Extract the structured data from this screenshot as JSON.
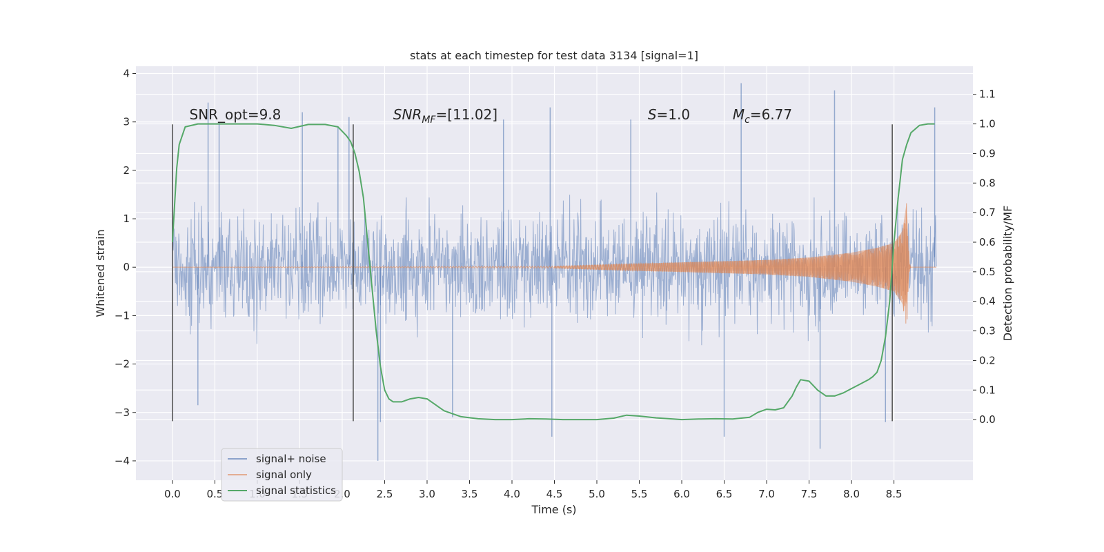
{
  "chart_data": {
    "type": "line",
    "title": "stats at each timestep for test data 3134 [signal=1]",
    "xlabel": "Time (s)",
    "ylabel": "Whitened strain",
    "y2label": "Detection probability/MF",
    "xlim": [
      -0.43,
      9.43
    ],
    "ylim": [
      -4.4,
      4.15
    ],
    "y2lim": [
      -0.205,
      1.195
    ],
    "xticks": [
      0.0,
      0.5,
      1.0,
      1.5,
      2.0,
      2.5,
      3.0,
      3.5,
      4.0,
      4.5,
      5.0,
      5.5,
      6.0,
      6.5,
      7.0,
      7.5,
      8.0,
      8.5
    ],
    "xtick_labels": [
      "0.0",
      "0.5",
      "1.0",
      "1.5",
      "2.0",
      "2.5",
      "3.0",
      "3.5",
      "4.0",
      "4.5",
      "5.0",
      "5.5",
      "6.0",
      "6.5",
      "7.0",
      "7.5",
      "8.0",
      "8.5"
    ],
    "yticks": [
      4,
      3,
      2,
      1,
      0,
      -1,
      -2,
      -3,
      -4
    ],
    "ytick_labels": [
      "4",
      "3",
      "2",
      "1",
      "0",
      "−1",
      "−2",
      "−3",
      "−4"
    ],
    "y2ticks": [
      1.1,
      1.0,
      0.9,
      0.8,
      0.7,
      0.6,
      0.5,
      0.4,
      0.3,
      0.2,
      0.1,
      0.0
    ],
    "y2tick_labels": [
      "1.1",
      "1.0",
      "0.9",
      "0.8",
      "0.7",
      "0.6",
      "0.5",
      "0.4",
      "0.3",
      "0.2",
      "0.1",
      "0.0"
    ],
    "grid": true,
    "legend_position": "lower-left",
    "series": [
      {
        "name": "signal+ noise",
        "color": "#4c72b0",
        "axis": "left",
        "x_range": [
          0.0,
          9.0
        ],
        "typical_envelope": [
          -1.3,
          1.3
        ],
        "peaks": [
          {
            "x": 0.42,
            "y": 3.4
          },
          {
            "x": 0.55,
            "y": 3.0
          },
          {
            "x": 1.53,
            "y": 3.2
          },
          {
            "x": 1.95,
            "y": 2.9
          },
          {
            "x": 2.08,
            "y": 3.1
          },
          {
            "x": 3.9,
            "y": 3.05
          },
          {
            "x": 4.45,
            "y": 3.3
          },
          {
            "x": 5.4,
            "y": 3.05
          },
          {
            "x": 6.7,
            "y": 3.8
          },
          {
            "x": 7.8,
            "y": 3.65
          },
          {
            "x": 8.98,
            "y": 3.3
          },
          {
            "x": 0.3,
            "y": -2.85
          },
          {
            "x": 2.45,
            "y": -3.2
          },
          {
            "x": 2.42,
            "y": -4.0
          },
          {
            "x": 3.3,
            "y": -3.1
          },
          {
            "x": 4.47,
            "y": -3.5
          },
          {
            "x": 6.5,
            "y": -3.5
          },
          {
            "x": 7.63,
            "y": -3.75
          },
          {
            "x": 8.4,
            "y": -3.2
          }
        ]
      },
      {
        "name": "signal only",
        "color": "#dd8452",
        "axis": "left",
        "x_range": [
          0.0,
          9.0
        ],
        "envelope": [
          [
            0.0,
            0.0
          ],
          [
            4.5,
            0.02
          ],
          [
            5.0,
            0.05
          ],
          [
            6.0,
            0.1
          ],
          [
            7.0,
            0.15
          ],
          [
            7.5,
            0.2
          ],
          [
            8.0,
            0.3
          ],
          [
            8.3,
            0.4
          ],
          [
            8.5,
            0.5
          ],
          [
            8.6,
            0.75
          ],
          [
            8.65,
            1.35
          ],
          [
            8.68,
            0.1
          ],
          [
            8.7,
            0.0
          ],
          [
            9.0,
            0.0
          ]
        ]
      },
      {
        "name": "signal statistics",
        "color": "#55a868",
        "axis": "right",
        "x": [
          0.0,
          0.05,
          0.08,
          0.15,
          0.3,
          0.5,
          0.8,
          1.0,
          1.2,
          1.4,
          1.6,
          1.8,
          1.95,
          2.05,
          2.1,
          2.15,
          2.2,
          2.25,
          2.3,
          2.35,
          2.4,
          2.45,
          2.5,
          2.55,
          2.6,
          2.7,
          2.8,
          2.9,
          3.0,
          3.1,
          3.2,
          3.4,
          3.6,
          3.8,
          4.0,
          4.2,
          4.4,
          4.6,
          4.8,
          5.0,
          5.2,
          5.35,
          5.5,
          5.7,
          5.9,
          6.0,
          6.2,
          6.4,
          6.6,
          6.8,
          6.9,
          7.0,
          7.1,
          7.2,
          7.3,
          7.35,
          7.4,
          7.5,
          7.6,
          7.7,
          7.8,
          7.9,
          8.0,
          8.1,
          8.2,
          8.25,
          8.3,
          8.35,
          8.4,
          8.45,
          8.5,
          8.55,
          8.6,
          8.65,
          8.7,
          8.8,
          8.9,
          8.98
        ],
        "y": [
          0.6,
          0.85,
          0.93,
          0.99,
          1.0,
          1.0,
          1.0,
          1.0,
          0.995,
          0.985,
          0.998,
          0.998,
          0.99,
          0.96,
          0.94,
          0.9,
          0.84,
          0.75,
          0.6,
          0.45,
          0.3,
          0.18,
          0.1,
          0.07,
          0.06,
          0.06,
          0.07,
          0.075,
          0.07,
          0.05,
          0.03,
          0.01,
          0.003,
          0.0,
          0.0,
          0.003,
          0.002,
          0.0,
          0.0,
          0.0,
          0.005,
          0.015,
          0.012,
          0.006,
          0.002,
          0.0,
          0.002,
          0.003,
          0.002,
          0.008,
          0.025,
          0.035,
          0.033,
          0.04,
          0.08,
          0.11,
          0.135,
          0.13,
          0.1,
          0.08,
          0.08,
          0.09,
          0.105,
          0.12,
          0.135,
          0.145,
          0.16,
          0.2,
          0.28,
          0.4,
          0.6,
          0.75,
          0.88,
          0.93,
          0.97,
          0.995,
          1.0,
          1.0
        ]
      }
    ],
    "vertical_markers": {
      "x": [
        0.0,
        2.13,
        8.48
      ],
      "color": "#555555"
    },
    "annotations": [
      {
        "x": 0.2,
        "y": 3.05,
        "parts": [
          {
            "text": "SNR_opt=9.8",
            "style": "normal"
          }
        ]
      },
      {
        "x": 2.6,
        "y": 3.05,
        "parts": [
          {
            "text": "SNR",
            "style": "italic"
          },
          {
            "text": "MF",
            "style": "italic-sub"
          },
          {
            "text": "=[11.02]",
            "style": "normal"
          }
        ]
      },
      {
        "x": 5.6,
        "y": 3.05,
        "parts": [
          {
            "text": "S",
            "style": "italic"
          },
          {
            "text": "=1.0",
            "style": "normal"
          }
        ]
      },
      {
        "x": 6.6,
        "y": 3.05,
        "parts": [
          {
            "text": "M",
            "style": "italic"
          },
          {
            "text": "c",
            "style": "italic-sub"
          },
          {
            "text": "=6.77",
            "style": "normal"
          }
        ]
      }
    ],
    "colors": {
      "plot_background": "#eaeaf2",
      "grid": "#ffffff",
      "text": "#262626"
    }
  }
}
